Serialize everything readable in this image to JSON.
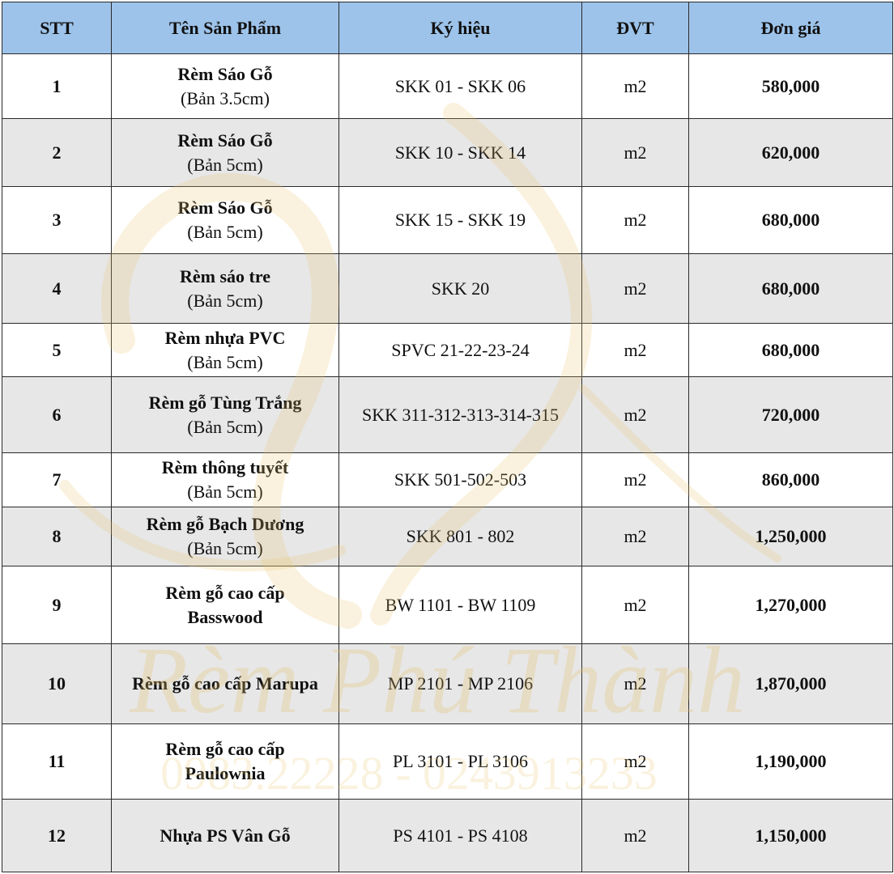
{
  "table": {
    "headers": [
      "STT",
      "Tên Sản Phẩm",
      "Ký hiệu",
      "ĐVT",
      "Đơn giá"
    ],
    "rows": [
      {
        "stt": "1",
        "name": "Rèm Sáo Gỗ",
        "sub": "(Bản 3.5cm)",
        "code": "SKK 01 - SKK 06",
        "unit": "m2",
        "price": "580,000"
      },
      {
        "stt": "2",
        "name": "Rèm Sáo Gỗ",
        "sub": "(Bản 5cm)",
        "code": "SKK 10 - SKK 14",
        "unit": "m2",
        "price": "620,000"
      },
      {
        "stt": "3",
        "name": "Rèm Sáo Gỗ",
        "sub": "(Bản 5cm)",
        "code": "SKK 15 - SKK 19",
        "unit": "m2",
        "price": "680,000"
      },
      {
        "stt": "4",
        "name": "Rèm sáo tre",
        "sub": "(Bản 5cm)",
        "code": "SKK 20",
        "unit": "m2",
        "price": "680,000"
      },
      {
        "stt": "5",
        "name": "Rèm nhựa PVC",
        "sub": "(Bản 5cm)",
        "code": "SPVC 21-22-23-24",
        "unit": "m2",
        "price": "680,000"
      },
      {
        "stt": "6",
        "name": "Rèm gỗ Tùng Trắng",
        "sub": "(Bản 5cm)",
        "code": "SKK 311-312-313-314-315",
        "unit": "m2",
        "price": "720,000"
      },
      {
        "stt": "7",
        "name": "Rèm thông tuyết",
        "sub": "(Bản 5cm)",
        "code": "SKK 501-502-503",
        "unit": "m2",
        "price": "860,000"
      },
      {
        "stt": "8",
        "name": "Rèm gỗ Bạch Dương",
        "sub": "(Bản 5cm)",
        "code": "SKK 801 - 802",
        "unit": "m2",
        "price": "1,250,000"
      },
      {
        "stt": "9",
        "name": "Rèm gỗ cao cấp",
        "sub": "Basswood",
        "sub_bold": true,
        "code": "BW 1101 - BW 1109",
        "unit": "m2",
        "price": "1,270,000"
      },
      {
        "stt": "10",
        "name": "Rèm gỗ cao cấp Marupa",
        "sub": "",
        "code": "MP 2101 - MP 2106",
        "unit": "m2",
        "price": "1,870,000"
      },
      {
        "stt": "11",
        "name": "Rèm gỗ cao cấp",
        "sub": "Paulownia",
        "sub_bold": true,
        "code": "PL 3101 - PL 3106",
        "unit": "m2",
        "price": "1,190,000"
      },
      {
        "stt": "12",
        "name": "Nhựa PS Vân Gỗ",
        "sub": "",
        "code": "PS 4101 - PS 4108",
        "unit": "m2",
        "price": "1,150,000"
      }
    ]
  },
  "watermark": {
    "brand": "Rèm Phú Thành",
    "phone": "0983.22228 - 0243913233"
  },
  "colors": {
    "header_bg": "#9dc3ea",
    "alt_row_bg": "#e7e7e7",
    "watermark": "#e7c26a"
  }
}
